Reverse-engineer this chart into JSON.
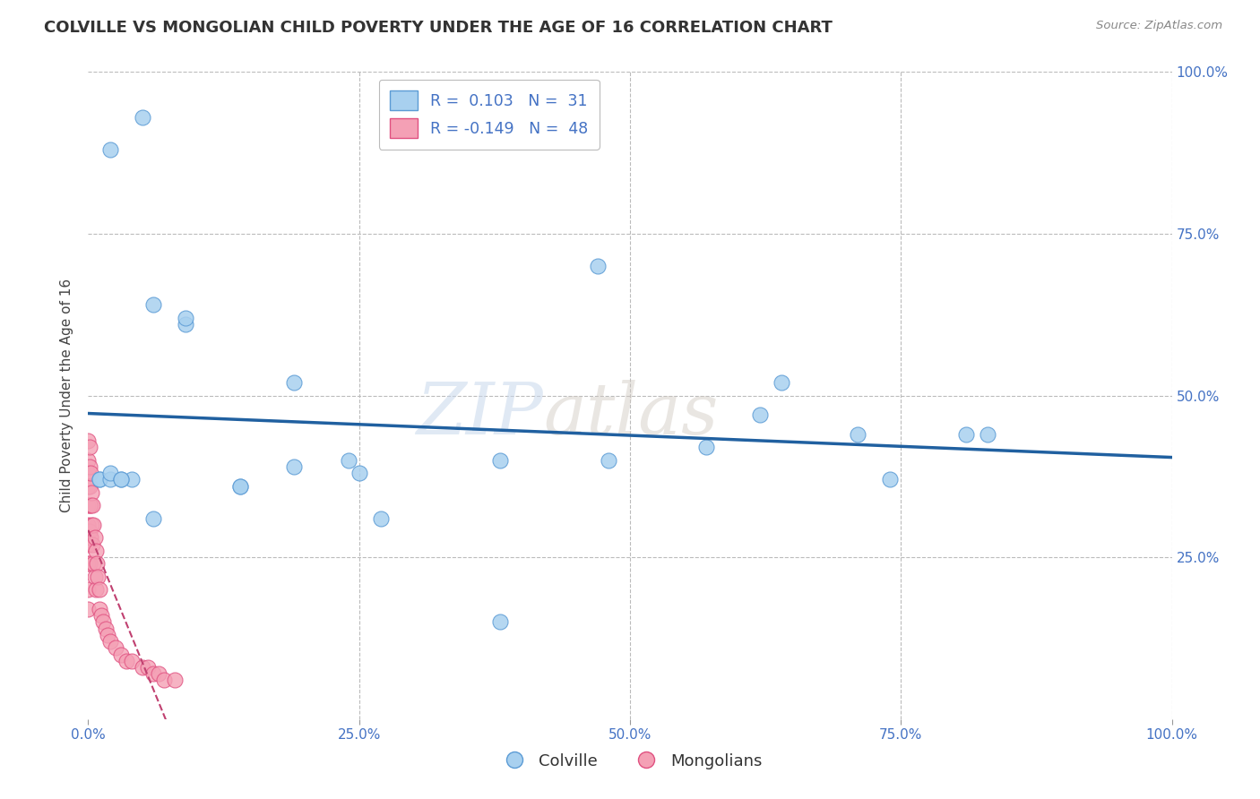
{
  "title": "COLVILLE VS MONGOLIAN CHILD POVERTY UNDER THE AGE OF 16 CORRELATION CHART",
  "source": "Source: ZipAtlas.com",
  "ylabel": "Child Poverty Under the Age of 16",
  "xlim": [
    0,
    1.0
  ],
  "ylim": [
    0,
    1.0
  ],
  "xticks": [
    0.0,
    0.25,
    0.5,
    0.75,
    1.0
  ],
  "yticks": [
    0.25,
    0.5,
    0.75,
    1.0
  ],
  "xticklabels": [
    "0.0%",
    "25.0%",
    "50.0%",
    "75.0%",
    "100.0%"
  ],
  "yticklabels_right": [
    "25.0%",
    "50.0%",
    "75.0%",
    "100.0%"
  ],
  "colville_color": "#A8D0EF",
  "mongolian_color": "#F4A0B5",
  "colville_edge_color": "#5B9BD5",
  "mongolian_edge_color": "#E05080",
  "colville_line_color": "#2060A0",
  "mongolian_line_color": "#C04070",
  "background_color": "#FFFFFF",
  "grid_color": "#BBBBBB",
  "legend_R_colville": "0.103",
  "legend_N_colville": "31",
  "legend_R_mongolian": "-0.149",
  "legend_N_mongolian": "48",
  "colville_x": [
    0.02,
    0.05,
    0.04,
    0.06,
    0.09,
    0.14,
    0.19,
    0.19,
    0.24,
    0.25,
    0.27,
    0.38,
    0.38,
    0.47,
    0.48,
    0.57,
    0.62,
    0.64,
    0.71,
    0.74,
    0.81,
    0.83,
    0.01,
    0.01,
    0.02,
    0.02,
    0.03,
    0.03,
    0.06,
    0.09,
    0.14
  ],
  "colville_y": [
    0.88,
    0.93,
    0.37,
    0.31,
    0.61,
    0.36,
    0.52,
    0.39,
    0.4,
    0.38,
    0.31,
    0.15,
    0.4,
    0.7,
    0.4,
    0.42,
    0.47,
    0.52,
    0.44,
    0.37,
    0.44,
    0.44,
    0.37,
    0.37,
    0.37,
    0.38,
    0.37,
    0.37,
    0.64,
    0.62,
    0.36
  ],
  "mongolian_x": [
    0.0,
    0.0,
    0.0,
    0.0,
    0.0,
    0.0,
    0.0,
    0.0,
    0.0,
    0.0,
    0.001,
    0.001,
    0.001,
    0.001,
    0.001,
    0.001,
    0.002,
    0.002,
    0.002,
    0.003,
    0.003,
    0.004,
    0.004,
    0.005,
    0.005,
    0.006,
    0.006,
    0.007,
    0.007,
    0.008,
    0.009,
    0.01,
    0.01,
    0.012,
    0.014,
    0.016,
    0.018,
    0.02,
    0.025,
    0.03,
    0.035,
    0.04,
    0.05,
    0.055,
    0.06,
    0.065,
    0.07,
    0.08
  ],
  "mongolian_y": [
    0.43,
    0.4,
    0.38,
    0.36,
    0.33,
    0.3,
    0.27,
    0.24,
    0.2,
    0.17,
    0.42,
    0.39,
    0.36,
    0.33,
    0.29,
    0.24,
    0.38,
    0.33,
    0.28,
    0.35,
    0.3,
    0.33,
    0.27,
    0.3,
    0.24,
    0.28,
    0.22,
    0.26,
    0.2,
    0.24,
    0.22,
    0.2,
    0.17,
    0.16,
    0.15,
    0.14,
    0.13,
    0.12,
    0.11,
    0.1,
    0.09,
    0.09,
    0.08,
    0.08,
    0.07,
    0.07,
    0.06,
    0.06
  ],
  "watermark_zip": "ZIP",
  "watermark_atlas": "atlas",
  "legend_labels": [
    "Colville",
    "Mongolians"
  ]
}
